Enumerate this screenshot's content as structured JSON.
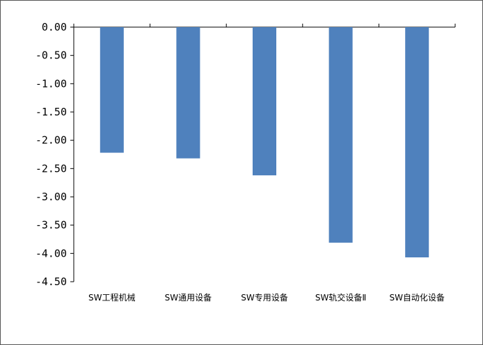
{
  "chart_data": {
    "type": "bar",
    "categories": [
      "SW工程机械",
      "SW通用设备",
      "SW专用设备",
      "SW轨交设备Ⅱ",
      "SW自动化设备"
    ],
    "values": [
      -2.22,
      -2.32,
      -2.62,
      -3.81,
      -4.07
    ],
    "title": "",
    "xlabel": "",
    "ylabel": "",
    "ylim": [
      -4.5,
      0
    ],
    "yticks": [
      "0.00",
      "-0.50",
      "-1.00",
      "-1.50",
      "-2.00",
      "-2.50",
      "-3.00",
      "-3.50",
      "-4.00",
      "-4.50"
    ],
    "tick_values": [
      0,
      -0.5,
      -1,
      -1.5,
      -2,
      -2.5,
      -3,
      -3.5,
      -4,
      -4.5
    ],
    "grid": false,
    "legend": "none",
    "bar_color": "#4F81BD"
  }
}
